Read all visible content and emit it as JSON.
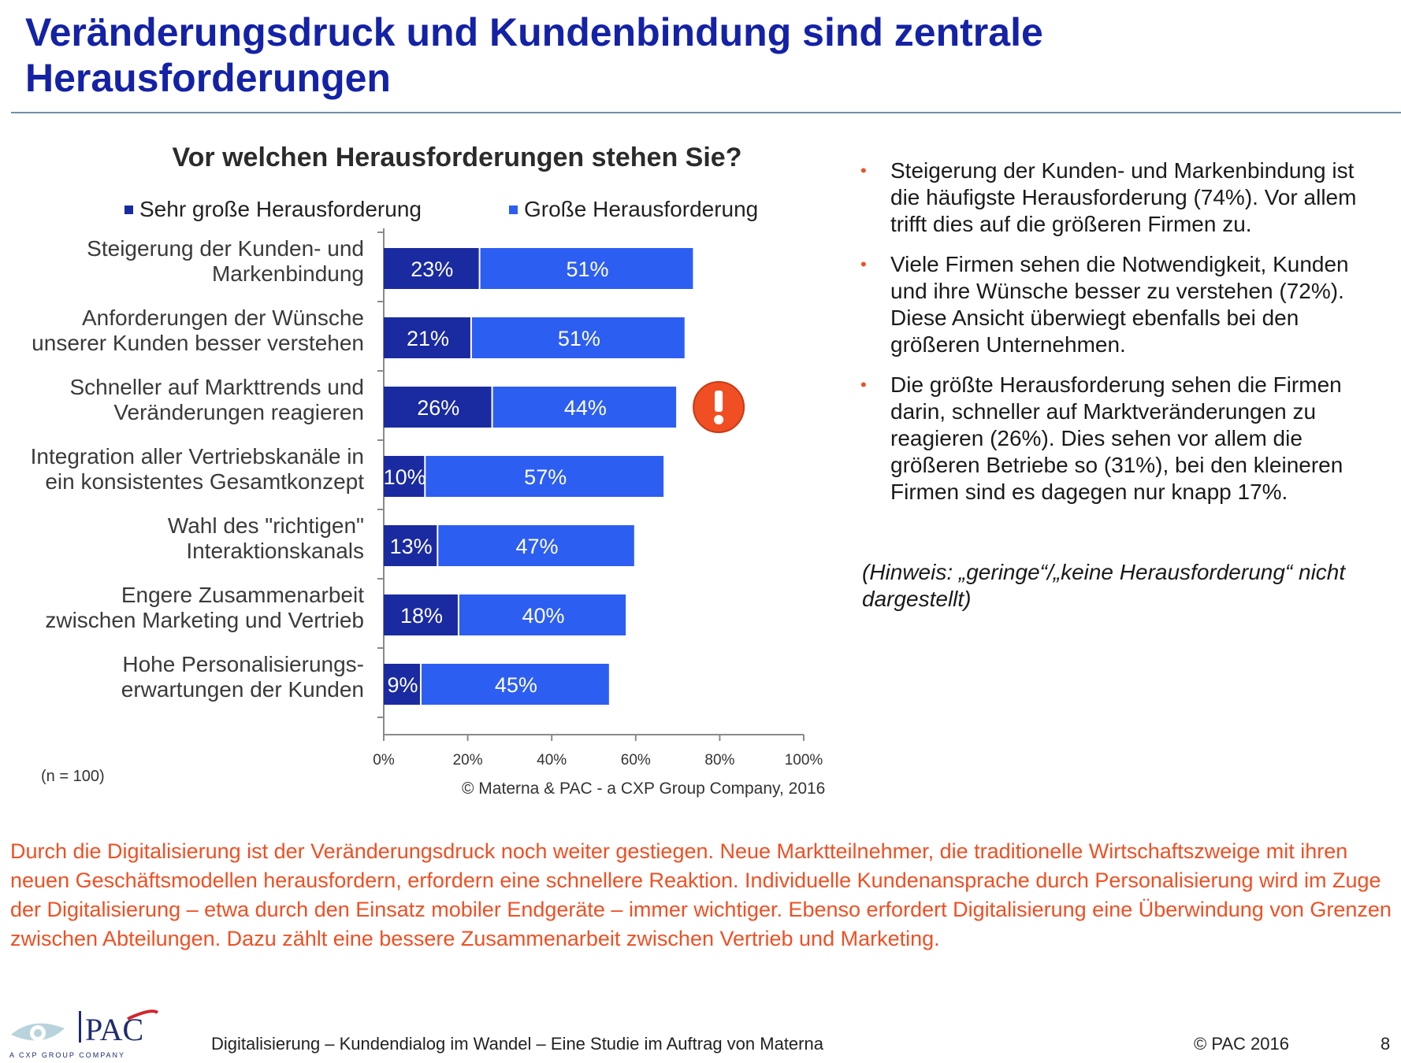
{
  "slide": {
    "title": "Veränderungsdruck und Kundenbindung sind zentrale Herausforderungen",
    "n_note": "(n = 100)",
    "source": "© Materna & PAC - a CXP Group Company, 2016",
    "bullets": [
      "Steigerung der Kunden- und Markenbindung ist die häufigste Herausforderung (74%). Vor allem trifft dies auf die größeren Firmen zu.",
      "Viele Firmen sehen die Notwendigkeit, Kunden und ihre Wünsche besser zu verstehen (72%). Diese Ansicht überwiegt ebenfalls bei den größeren Unternehmen.",
      "Die größte Herausforderung sehen die Firmen darin, schneller auf Marktveränderungen zu reagieren (26%). Dies sehen vor allem die größeren Betriebe so (31%), bei den kleineren Firmen sind es dagegen nur knapp 17%."
    ],
    "bullet_marker": "•",
    "note": "(Hinweis: „geringe“/„keine Herausforderung“ nicht dargestellt)",
    "body_text": "Durch die Digitalisierung ist der Veränderungsdruck noch weiter gestiegen. Neue Marktteilnehmer, die traditionelle Wirtschaftszweige mit ihren neuen Geschäftsmodellen herausfordern, erfordern eine schnellere Reaktion. Individuelle Kundenansprache durch Personalisierung wird im Zuge der Digitalisierung – etwa durch den Einsatz mobiler Endgeräte – immer wichtiger. Ebenso erfordert Digitalisierung eine Überwindung von Grenzen zwischen Abteilungen. Dazu zählt eine bessere Zusammenarbeit zwischen Vertrieb und Marketing.",
    "footer_text": "Digitalisierung – Kundendialog im Wandel – Eine Studie im Auftrag von Materna",
    "footer_copyright": "© PAC 2016",
    "page_number": "8",
    "logo_text": "PAC",
    "logo_tagline": "A CXP GROUP COMPANY",
    "alert_icon": "exclamation-icon",
    "colors": {
      "title": "#1422a6",
      "series_dark": "#1a2aa0",
      "series_light": "#2d5ef2",
      "orange": "#f04f23"
    }
  },
  "chart_data": {
    "type": "bar",
    "orientation": "horizontal",
    "stacked": true,
    "title": "Vor welchen Herausforderungen stehen Sie?",
    "categories": [
      [
        "Steigerung der Kunden- und",
        "Markenbindung"
      ],
      [
        "Anforderungen der Wünsche",
        "unserer Kunden besser verstehen"
      ],
      [
        "Schneller auf Markttrends und",
        "Veränderungen reagieren"
      ],
      [
        "Integration aller Vertriebskanäle in",
        "ein konsistentes Gesamtkonzept"
      ],
      [
        "Wahl des \"richtigen\"",
        "Interaktionskanals"
      ],
      [
        "Engere Zusammenarbeit",
        "zwischen Marketing und Vertrieb"
      ],
      [
        "Hohe Personalisierungs-",
        "erwartungen der Kunden"
      ]
    ],
    "series": [
      {
        "name": "Sehr große Herausforderung",
        "color": "#1a2aa0",
        "values": [
          23,
          21,
          26,
          10,
          13,
          18,
          9
        ]
      },
      {
        "name": "Große Herausforderung",
        "color": "#2d5ef2",
        "values": [
          51,
          51,
          44,
          57,
          47,
          40,
          45
        ]
      }
    ],
    "value_suffix": "%",
    "xlim": [
      0,
      100
    ],
    "xticks": [
      "0%",
      "20%",
      "40%",
      "60%",
      "80%",
      "100%"
    ],
    "grid": false,
    "legend": "top",
    "highlighted_category_index": 2
  }
}
